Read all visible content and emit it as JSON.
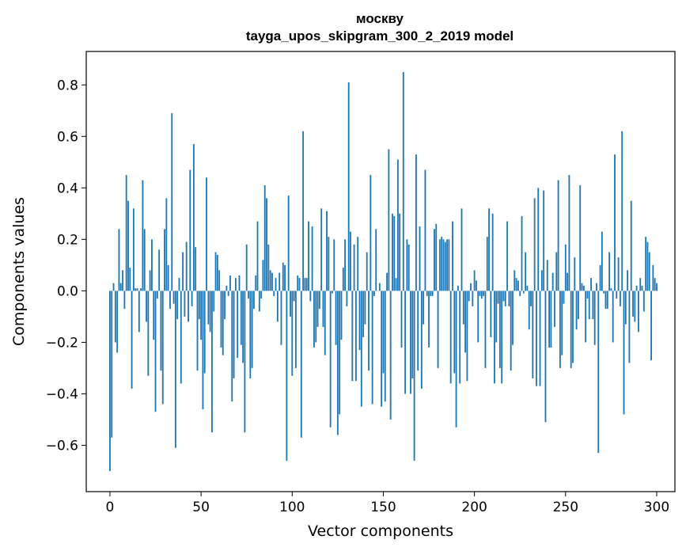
{
  "chart_data": {
    "type": "bar",
    "title_line1": "москву",
    "title_line2": "tayga_upos_skipgram_300_2_2019 model",
    "xlabel": "Vector components",
    "ylabel": "Components values",
    "xlim": [
      -13,
      310
    ],
    "ylim": [
      -0.78,
      0.93
    ],
    "x_ticks": [
      0,
      50,
      100,
      150,
      200,
      250,
      300
    ],
    "x_tick_labels": [
      "0",
      "50",
      "100",
      "150",
      "200",
      "250",
      "300"
    ],
    "y_ticks": [
      -0.6,
      -0.4,
      -0.2,
      0.0,
      0.2,
      0.4,
      0.6,
      0.8
    ],
    "y_tick_labels": [
      "−0.6",
      "−0.4",
      "−0.2",
      "0.0",
      "0.2",
      "0.4",
      "0.6",
      "0.8"
    ],
    "bar_color": "#1f77b4",
    "values": [
      -0.7,
      -0.57,
      0.03,
      -0.2,
      -0.24,
      0.24,
      0.03,
      0.08,
      -0.07,
      0.45,
      0.35,
      0.09,
      -0.38,
      0.32,
      0.01,
      0.01,
      -0.16,
      0.01,
      0.43,
      0.24,
      -0.12,
      -0.33,
      0.08,
      0.2,
      -0.19,
      -0.47,
      -0.03,
      0.16,
      -0.31,
      -0.44,
      0.24,
      0.36,
      0.1,
      -0.07,
      0.69,
      -0.05,
      -0.61,
      -0.11,
      0.05,
      -0.36,
      0.15,
      -0.1,
      0.19,
      -0.12,
      0.47,
      -0.06,
      0.57,
      0.17,
      -0.31,
      -0.11,
      -0.19,
      -0.46,
      -0.32,
      0.44,
      -0.13,
      -0.16,
      -0.55,
      -0.08,
      0.15,
      0.14,
      0.08,
      -0.22,
      -0.25,
      -0.11,
      0.02,
      -0.02,
      0.06,
      -0.43,
      -0.34,
      0.05,
      -0.26,
      0.06,
      -0.21,
      -0.28,
      -0.55,
      0.18,
      -0.03,
      -0.34,
      -0.3,
      -0.07,
      0.06,
      0.27,
      -0.08,
      -0.03,
      0.12,
      0.41,
      0.36,
      0.18,
      0.08,
      0.07,
      -0.02,
      0.05,
      -0.12,
      0.07,
      -0.21,
      0.11,
      0.1,
      -0.66,
      0.37,
      -0.1,
      -0.33,
      -0.04,
      -0.3,
      0.06,
      0.05,
      -0.57,
      0.62,
      0.05,
      0.05,
      0.27,
      -0.04,
      0.25,
      -0.22,
      -0.2,
      -0.14,
      -0.07,
      0.32,
      -0.14,
      -0.25,
      0.31,
      0.21,
      -0.53,
      -0.01,
      0.2,
      -0.21,
      -0.56,
      -0.48,
      -0.19,
      0.09,
      0.2,
      -0.06,
      0.81,
      0.23,
      -0.35,
      0.18,
      -0.35,
      0.21,
      -0.23,
      -0.45,
      -0.18,
      -0.13,
      0.15,
      -0.31,
      0.45,
      -0.44,
      -0.02,
      0.24,
      0.0,
      0.03,
      -0.45,
      -0.32,
      -0.43,
      0.07,
      0.55,
      -0.5,
      0.3,
      0.29,
      0.05,
      0.51,
      0.3,
      -0.22,
      0.85,
      -0.4,
      0.2,
      0.18,
      -0.4,
      -0.34,
      -0.66,
      0.53,
      -0.31,
      0.25,
      -0.38,
      -0.13,
      0.47,
      -0.02,
      -0.22,
      -0.02,
      -0.02,
      0.24,
      0.26,
      -0.3,
      0.2,
      0.21,
      0.2,
      0.19,
      0.2,
      0.2,
      -0.36,
      0.27,
      -0.32,
      -0.53,
      0.02,
      -0.36,
      0.32,
      -0.13,
      -0.24,
      -0.35,
      -0.04,
      0.03,
      -0.06,
      0.08,
      0.04,
      -0.2,
      -0.02,
      -0.03,
      -0.02,
      -0.3,
      0.21,
      0.32,
      -0.18,
      0.3,
      -0.36,
      -0.2,
      -0.05,
      -0.3,
      -0.36,
      -0.04,
      -0.06,
      0.27,
      -0.06,
      -0.31,
      -0.21,
      0.08,
      0.05,
      0.04,
      -0.02,
      0.29,
      -0.01,
      0.15,
      0.02,
      -0.15,
      -0.06,
      -0.34,
      0.36,
      -0.37,
      0.4,
      -0.37,
      0.08,
      0.39,
      -0.51,
      0.12,
      -0.22,
      -0.22,
      0.07,
      -0.14,
      0.15,
      0.43,
      -0.3,
      -0.25,
      -0.05,
      0.18,
      0.07,
      0.45,
      -0.3,
      -0.28,
      0.13,
      -0.15,
      -0.11,
      0.41,
      0.03,
      0.02,
      -0.2,
      -0.03,
      -0.11,
      0.05,
      -0.11,
      -0.21,
      0.03,
      -0.63,
      0.1,
      0.23,
      -0.01,
      -0.07,
      -0.07,
      0.15,
      0.01,
      -0.2,
      0.53,
      -0.03,
      0.13,
      -0.06,
      0.62,
      -0.48,
      -0.13,
      0.08,
      -0.28,
      0.35,
      -0.1,
      -0.12,
      0.02,
      -0.16,
      0.05,
      0.02,
      -0.08,
      0.21,
      0.19,
      0.15,
      -0.27,
      0.1,
      0.05,
      0.03
    ]
  }
}
